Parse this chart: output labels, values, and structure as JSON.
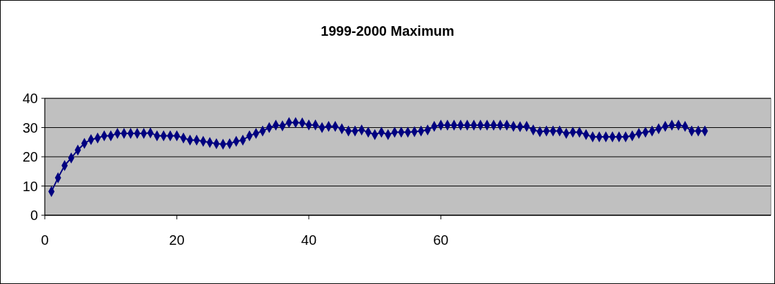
{
  "chart_data": {
    "type": "line",
    "title": "1999-2000 Maximum",
    "x": [
      1,
      2,
      3,
      4,
      5,
      6,
      7,
      8,
      9,
      10,
      11,
      12,
      13,
      14,
      15,
      16,
      17,
      18,
      19,
      20,
      21,
      22,
      23,
      24,
      25,
      26,
      27,
      28,
      29,
      30,
      31,
      32,
      33,
      34,
      35,
      36,
      37,
      38,
      39,
      40,
      41,
      42,
      43,
      44,
      45,
      46,
      47,
      48,
      49,
      50,
      51,
      52,
      53,
      54,
      55,
      56,
      57,
      58,
      59,
      60,
      61,
      62,
      63,
      64,
      65,
      66,
      67,
      68,
      69,
      70,
      71,
      72,
      73,
      74,
      75,
      76,
      77,
      78,
      79,
      80,
      81,
      82,
      83,
      84,
      85,
      86,
      87,
      88,
      89,
      90,
      91,
      92,
      93,
      94,
      95,
      96,
      97,
      98,
      99,
      100
    ],
    "series": [
      {
        "color": "#000080",
        "values": [
          8.1,
          12.8,
          17.0,
          19.6,
          22.3,
          24.6,
          25.9,
          26.4,
          27.2,
          27.2,
          28.0,
          28.0,
          28.0,
          28.0,
          28.0,
          28.2,
          27.2,
          27.2,
          27.2,
          27.2,
          26.4,
          25.7,
          25.7,
          25.3,
          24.9,
          24.5,
          24.3,
          24.5,
          25.3,
          25.7,
          27.2,
          28.0,
          28.8,
          30.0,
          30.8,
          30.6,
          31.7,
          31.7,
          31.6,
          30.9,
          30.9,
          30.0,
          30.4,
          30.4,
          29.6,
          28.8,
          28.8,
          29.2,
          28.4,
          27.6,
          28.4,
          27.6,
          28.4,
          28.4,
          28.4,
          28.6,
          28.8,
          29.2,
          30.4,
          30.8,
          30.8,
          30.8,
          30.8,
          30.8,
          30.8,
          30.8,
          30.8,
          30.8,
          30.8,
          30.8,
          30.4,
          30.3,
          30.4,
          29.2,
          28.6,
          28.8,
          28.8,
          28.8,
          28.0,
          28.4,
          28.4,
          27.6,
          26.8,
          26.8,
          26.8,
          26.8,
          26.8,
          26.8,
          27.2,
          28.0,
          28.4,
          28.8,
          29.6,
          30.4,
          30.8,
          30.8,
          30.4,
          28.8,
          28.8,
          28.8
        ]
      }
    ],
    "xlim": [
      0,
      110
    ],
    "xticks": [
      0,
      20,
      40,
      60
    ],
    "ylim": [
      0,
      40
    ],
    "yticks": [
      0,
      10,
      20,
      30,
      40
    ],
    "grid": "y",
    "marker": "diamond",
    "line_style": "solid"
  }
}
